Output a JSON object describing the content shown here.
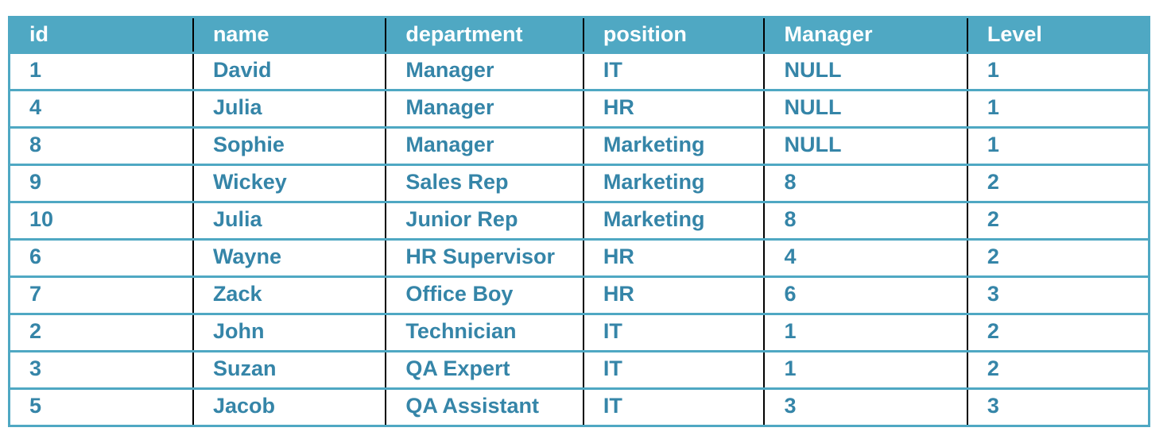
{
  "table": {
    "columns": [
      "id",
      "name",
      "department",
      "position",
      "Manager",
      "Level"
    ],
    "column_widths_pct": [
      16.14,
      16.91,
      17.33,
      15.87,
      17.81,
      15.94
    ],
    "rows": [
      [
        "1",
        "David",
        "Manager",
        "IT",
        "NULL",
        "1"
      ],
      [
        "4",
        "Julia",
        "Manager",
        "HR",
        "NULL",
        "1"
      ],
      [
        "8",
        "Sophie",
        "Manager",
        "Marketing",
        "NULL",
        "1"
      ],
      [
        "9",
        "Wickey",
        "Sales Rep",
        "Marketing",
        "8",
        "2"
      ],
      [
        "10",
        "Julia",
        "Junior Rep",
        "Marketing",
        "8",
        "2"
      ],
      [
        "6",
        "Wayne",
        "HR Supervisor",
        "HR",
        "4",
        "2"
      ],
      [
        "7",
        "Zack",
        "Office Boy",
        "HR",
        "6",
        "3"
      ],
      [
        "2",
        "John",
        "Technician",
        "IT",
        "1",
        "2"
      ],
      [
        "3",
        "Suzan",
        "QA Expert",
        "IT",
        "1",
        "2"
      ],
      [
        "5",
        "Jacob",
        "QA Assistant",
        "IT",
        "3",
        "3"
      ]
    ]
  },
  "colors": {
    "header_background": "#4fa8c3",
    "header_text": "#ffffff",
    "body_text": "#3585a8",
    "row_divider": "#4fa8c3",
    "column_divider": "#000000",
    "page_background": "#ffffff"
  }
}
